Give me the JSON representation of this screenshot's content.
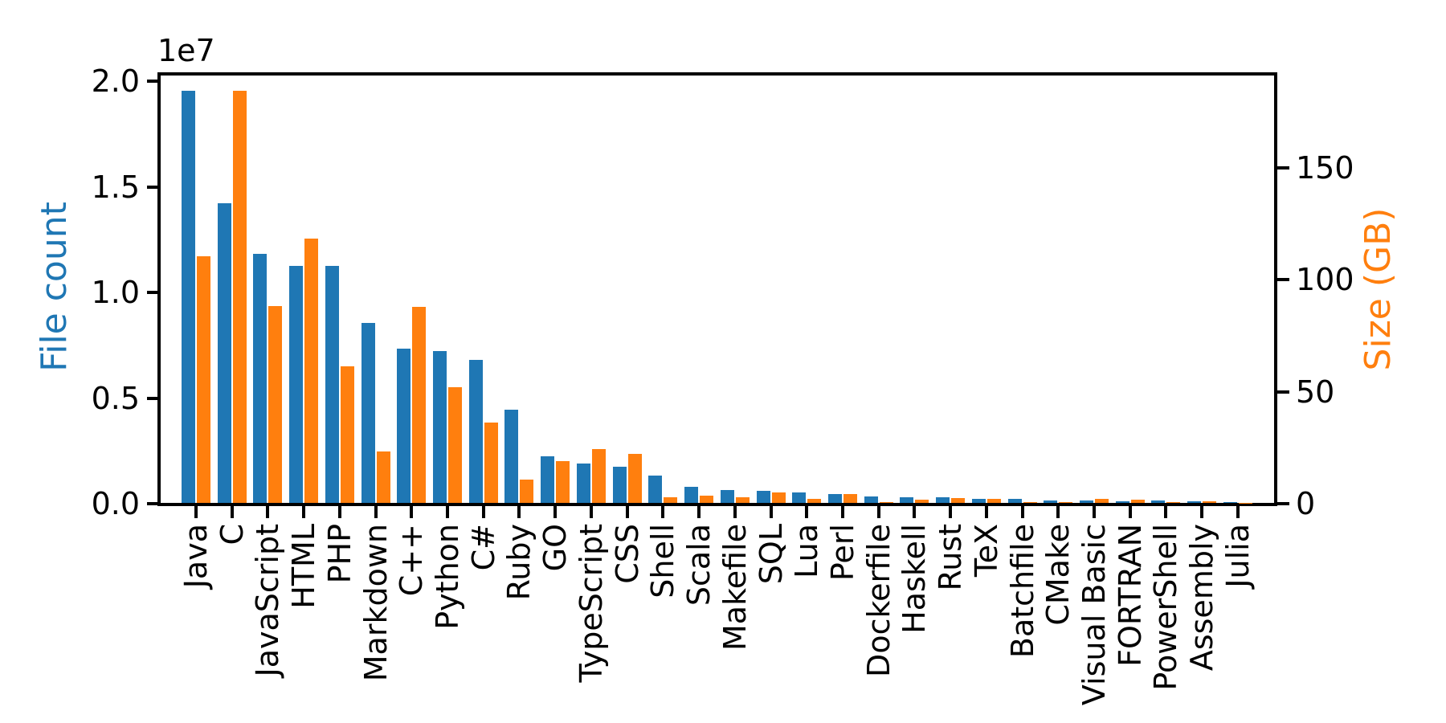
{
  "figure": {
    "background": "#ffffff"
  },
  "axes": {
    "left": {
      "label": "File count",
      "label_color": "#1f77b4",
      "offset_text": "1e7",
      "ticks": [
        {
          "value": 0,
          "label": "0.0"
        },
        {
          "value": 5000000,
          "label": "0.5"
        },
        {
          "value": 10000000,
          "label": "1.0"
        },
        {
          "value": 15000000,
          "label": "1.5"
        },
        {
          "value": 20000000,
          "label": "2.0"
        }
      ]
    },
    "right": {
      "label": "Size (GB)",
      "label_color": "#ff7f0e",
      "ticks": [
        {
          "value": 0,
          "label": "0"
        },
        {
          "value": 50,
          "label": "50"
        },
        {
          "value": 100,
          "label": "100"
        },
        {
          "value": 150,
          "label": "150"
        }
      ]
    }
  },
  "chart_data": {
    "type": "bar",
    "grouped": true,
    "dual_axis": true,
    "title": "",
    "xlabel": "",
    "grid": false,
    "legend": "none",
    "left_ylim": [
      0,
      20460000
    ],
    "right_ylim": [
      0,
      193
    ],
    "categories": [
      "Java",
      "C",
      "JavaScript",
      "HTML",
      "PHP",
      "Markdown",
      "C++",
      "Python",
      "C#",
      "Ruby",
      "GO",
      "TypeScript",
      "CSS",
      "Shell",
      "Scala",
      "Makefile",
      "SQL",
      "Lua",
      "Perl",
      "Dockerfile",
      "Haskell",
      "Rust",
      "TeX",
      "Batchfile",
      "CMake",
      "Visual Basic",
      "FORTRAN",
      "PowerShell",
      "Assembly",
      "Julia"
    ],
    "series": [
      {
        "name": "File count",
        "axis": "left",
        "color": "#1f77b4",
        "values": [
          19500000,
          14200000,
          11800000,
          11200000,
          11200000,
          8500000,
          7300000,
          7200000,
          6750000,
          4400000,
          2200000,
          1850000,
          1700000,
          1300000,
          750000,
          610000,
          580000,
          510000,
          420000,
          300000,
          270000,
          270000,
          185000,
          195000,
          130000,
          110000,
          90000,
          100000,
          60000,
          40000
        ]
      },
      {
        "name": "Size (GB)",
        "axis": "right",
        "color": "#ff7f0e",
        "values": [
          110,
          184,
          88,
          118,
          61,
          23,
          87.5,
          51.5,
          36,
          10.5,
          18.5,
          24,
          22,
          2.4,
          3.2,
          2.4,
          4.8,
          1.9,
          4.1,
          0.4,
          1.4,
          2.2,
          1.8,
          0.3,
          0.2,
          1.7,
          1.4,
          0.3,
          0.6,
          0.1
        ]
      }
    ]
  }
}
